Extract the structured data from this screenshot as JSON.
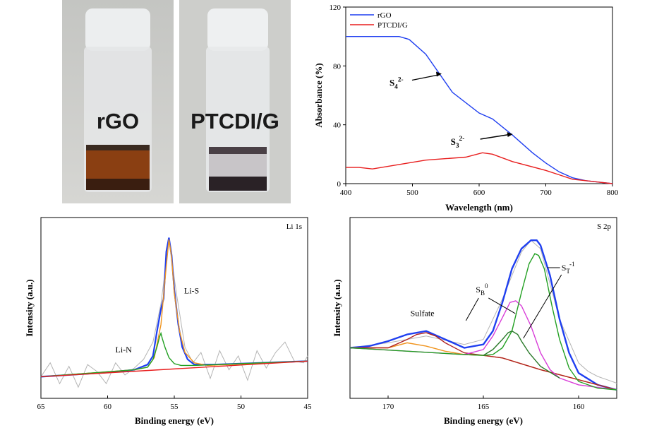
{
  "photos": {
    "left_label": "rGO",
    "right_label": "PTCDI/G",
    "left_liquid_color": "#8a3f12",
    "right_liquid_color": "#2a2226"
  },
  "chart_data": [
    {
      "type": "line",
      "panel": "absorbance",
      "xlabel": "Wavelength (nm)",
      "ylabel": "Absorbance (%)",
      "xlim": [
        400,
        800
      ],
      "ylim": [
        0,
        120
      ],
      "xticks": [
        400,
        500,
        600,
        700,
        800
      ],
      "yticks": [
        0,
        40,
        80,
        120
      ],
      "legend_position": "top-left",
      "series": [
        {
          "name": "rGO",
          "color": "#1f3ff0",
          "x": [
            400,
            440,
            480,
            495,
            520,
            560,
            600,
            620,
            650,
            680,
            700,
            720,
            740,
            760,
            780,
            790,
            800
          ],
          "y": [
            100,
            100,
            100,
            98,
            88,
            62,
            48,
            44,
            33,
            21,
            14,
            8,
            4,
            2,
            1,
            0.5,
            0
          ]
        },
        {
          "name": "PTCDI/G",
          "color": "#e81e1e",
          "x": [
            400,
            420,
            440,
            480,
            520,
            550,
            580,
            605,
            620,
            650,
            700,
            720,
            740,
            760,
            780,
            800
          ],
          "y": [
            11,
            11,
            10,
            13,
            16,
            17,
            18,
            21,
            20,
            15,
            9,
            6,
            3,
            2,
            1,
            0
          ]
        }
      ],
      "annotations": [
        {
          "base": "S",
          "sub": "4",
          "sup": "2-",
          "x": 510,
          "y": 78
        },
        {
          "base": "S",
          "sub": "3",
          "sup": "2-",
          "x": 625,
          "y": 36
        }
      ]
    },
    {
      "type": "line",
      "panel": "li1s",
      "label": "Li 1s",
      "xlabel": "Binding energy (eV)",
      "ylabel": "Intensity (a.u.)",
      "xlim": [
        65,
        45
      ],
      "xticks": [
        65,
        60,
        55,
        50,
        45
      ],
      "ylim": [
        0,
        100
      ],
      "series": [
        {
          "name": "raw",
          "color": "#b4b4b4",
          "x": [
            65,
            64.3,
            63.6,
            62.9,
            62.2,
            61.5,
            60.8,
            60.1,
            59.4,
            58.7,
            58,
            57.3,
            56.6,
            56,
            55.4,
            54.8,
            54.2,
            53.6,
            53,
            52.3,
            51.6,
            50.9,
            50.2,
            49.5,
            48.8,
            48.1,
            47.4,
            46.7,
            46,
            45.3,
            45
          ],
          "y": [
            10,
            18,
            6,
            16,
            4,
            17,
            13,
            6,
            18,
            11,
            15,
            20,
            30,
            52,
            88,
            56,
            27,
            18,
            24,
            9,
            25,
            14,
            22,
            8,
            25,
            15,
            24,
            30,
            19,
            18,
            22
          ]
        },
        {
          "name": "fit",
          "color": "#1f3ff0",
          "x": [
            65,
            60,
            58,
            57,
            56.6,
            56.3,
            56,
            55.8,
            55.6,
            55.4,
            55.2,
            55,
            54.7,
            54.4,
            54,
            53.5,
            52,
            45
          ],
          "y": [
            10,
            12.5,
            14,
            17,
            22,
            36,
            49,
            55,
            82,
            90,
            80,
            60,
            40,
            27,
            20,
            17,
            17,
            19
          ]
        },
        {
          "name": "Li-S",
          "color": "#f0941e",
          "x": [
            65,
            58,
            57,
            56.5,
            56,
            55.6,
            55.4,
            55.2,
            55,
            54.6,
            54.2,
            53.5,
            52.5,
            45
          ],
          "y": [
            10,
            14,
            15.5,
            21,
            40,
            74,
            89,
            79,
            58,
            36,
            24,
            18,
            16.5,
            19
          ]
        },
        {
          "name": "Li-N",
          "color": "#22a022",
          "x": [
            65,
            58,
            57,
            56.6,
            56.3,
            56.1,
            56,
            55.9,
            55.7,
            55.4,
            55,
            54.5,
            53.5,
            45
          ],
          "y": [
            10,
            14,
            15.5,
            20,
            27,
            33,
            35,
            32,
            27,
            21,
            17.5,
            16.5,
            16.5,
            19
          ]
        },
        {
          "name": "baseline",
          "color": "#e81e1e",
          "x": [
            65,
            45
          ],
          "y": [
            10,
            19
          ]
        }
      ],
      "annotations": [
        {
          "text": "Li-S",
          "x": 53.7,
          "y": 58
        },
        {
          "text": "Li-N",
          "x": 58.8,
          "y": 24
        }
      ]
    },
    {
      "type": "line",
      "panel": "s2p",
      "label": "S 2p",
      "xlabel": "Binding energy (eV)",
      "ylabel": "Intensity (a.u.)",
      "xlim": [
        172,
        158
      ],
      "xticks": [
        170,
        165,
        160
      ],
      "ylim": [
        0,
        100
      ],
      "series": [
        {
          "name": "raw",
          "color": "#b4b4b4",
          "x": [
            172,
            170,
            168,
            166,
            165,
            164,
            163,
            162.5,
            162,
            161,
            160,
            159.5,
            159,
            158.5,
            158
          ],
          "y": [
            25,
            28,
            32,
            27,
            30,
            54,
            82,
            89,
            84,
            42,
            16,
            11,
            8,
            6,
            4
          ]
        },
        {
          "name": "fit",
          "color": "#1f3ff0",
          "x": [
            172,
            171,
            170,
            169,
            168,
            167,
            166,
            165,
            164.5,
            164,
            163.5,
            163,
            162.5,
            162.2,
            162,
            161.5,
            161,
            160.5,
            160,
            159,
            158
          ],
          "y": [
            25,
            26,
            29,
            33,
            35,
            30,
            25,
            27,
            35,
            52,
            72,
            84,
            89,
            89,
            86,
            68,
            42,
            22,
            10,
            3,
            0
          ]
        },
        {
          "name": "Sulfate",
          "color": "#f0941e",
          "x": [
            172,
            170,
            169,
            168,
            167,
            166,
            165,
            164,
            162,
            160,
            158
          ],
          "y": [
            25,
            25,
            28,
            26,
            23,
            21,
            20.5,
            19,
            12,
            6,
            0
          ]
        },
        {
          "name": "Sulfate-2",
          "color": "#b02222",
          "x": [
            172,
            170,
            169,
            168.5,
            168,
            167.5,
            167,
            166,
            165,
            164,
            162,
            160,
            158
          ],
          "y": [
            25,
            25,
            30,
            33,
            34,
            32,
            28,
            22,
            20.5,
            19,
            12,
            6,
            0
          ]
        },
        {
          "name": "S_B",
          "color": "#d83cd8",
          "x": [
            172,
            166,
            165,
            164.5,
            164,
            163.6,
            163.3,
            163,
            162.5,
            162,
            161.5,
            161,
            160,
            158
          ],
          "y": [
            25,
            21,
            24,
            32,
            43,
            52,
            53,
            50,
            38,
            22,
            12,
            7,
            3,
            0
          ]
        },
        {
          "name": "S_T",
          "color": "#22a022",
          "x": [
            172,
            166,
            165,
            164.5,
            164,
            163.5,
            163,
            162.6,
            162.3,
            162.1,
            161.8,
            161.4,
            161,
            160.5,
            160,
            159,
            158
          ],
          "y": [
            25,
            21,
            20.5,
            21,
            25,
            35,
            58,
            75,
            81,
            80,
            72,
            50,
            30,
            13,
            5,
            1,
            0
          ]
        },
        {
          "name": "S_B-2",
          "color": "#2a7a2a",
          "x": [
            165,
            164.5,
            164,
            163.7,
            163.5,
            163.2,
            163,
            162.6,
            162,
            161
          ],
          "y": [
            20.5,
            24,
            30,
            34,
            35,
            33,
            29,
            22,
            14,
            7
          ]
        }
      ],
      "annotations": [
        {
          "text": "Sulfate",
          "x": 168.2,
          "y": 44
        },
        {
          "base": "S",
          "sub": "B",
          "sup": "0",
          "x": 165.1,
          "y": 58
        },
        {
          "base": "S",
          "sub": "T",
          "sup": "-1",
          "x": 160.9,
          "y": 71
        }
      ]
    }
  ]
}
